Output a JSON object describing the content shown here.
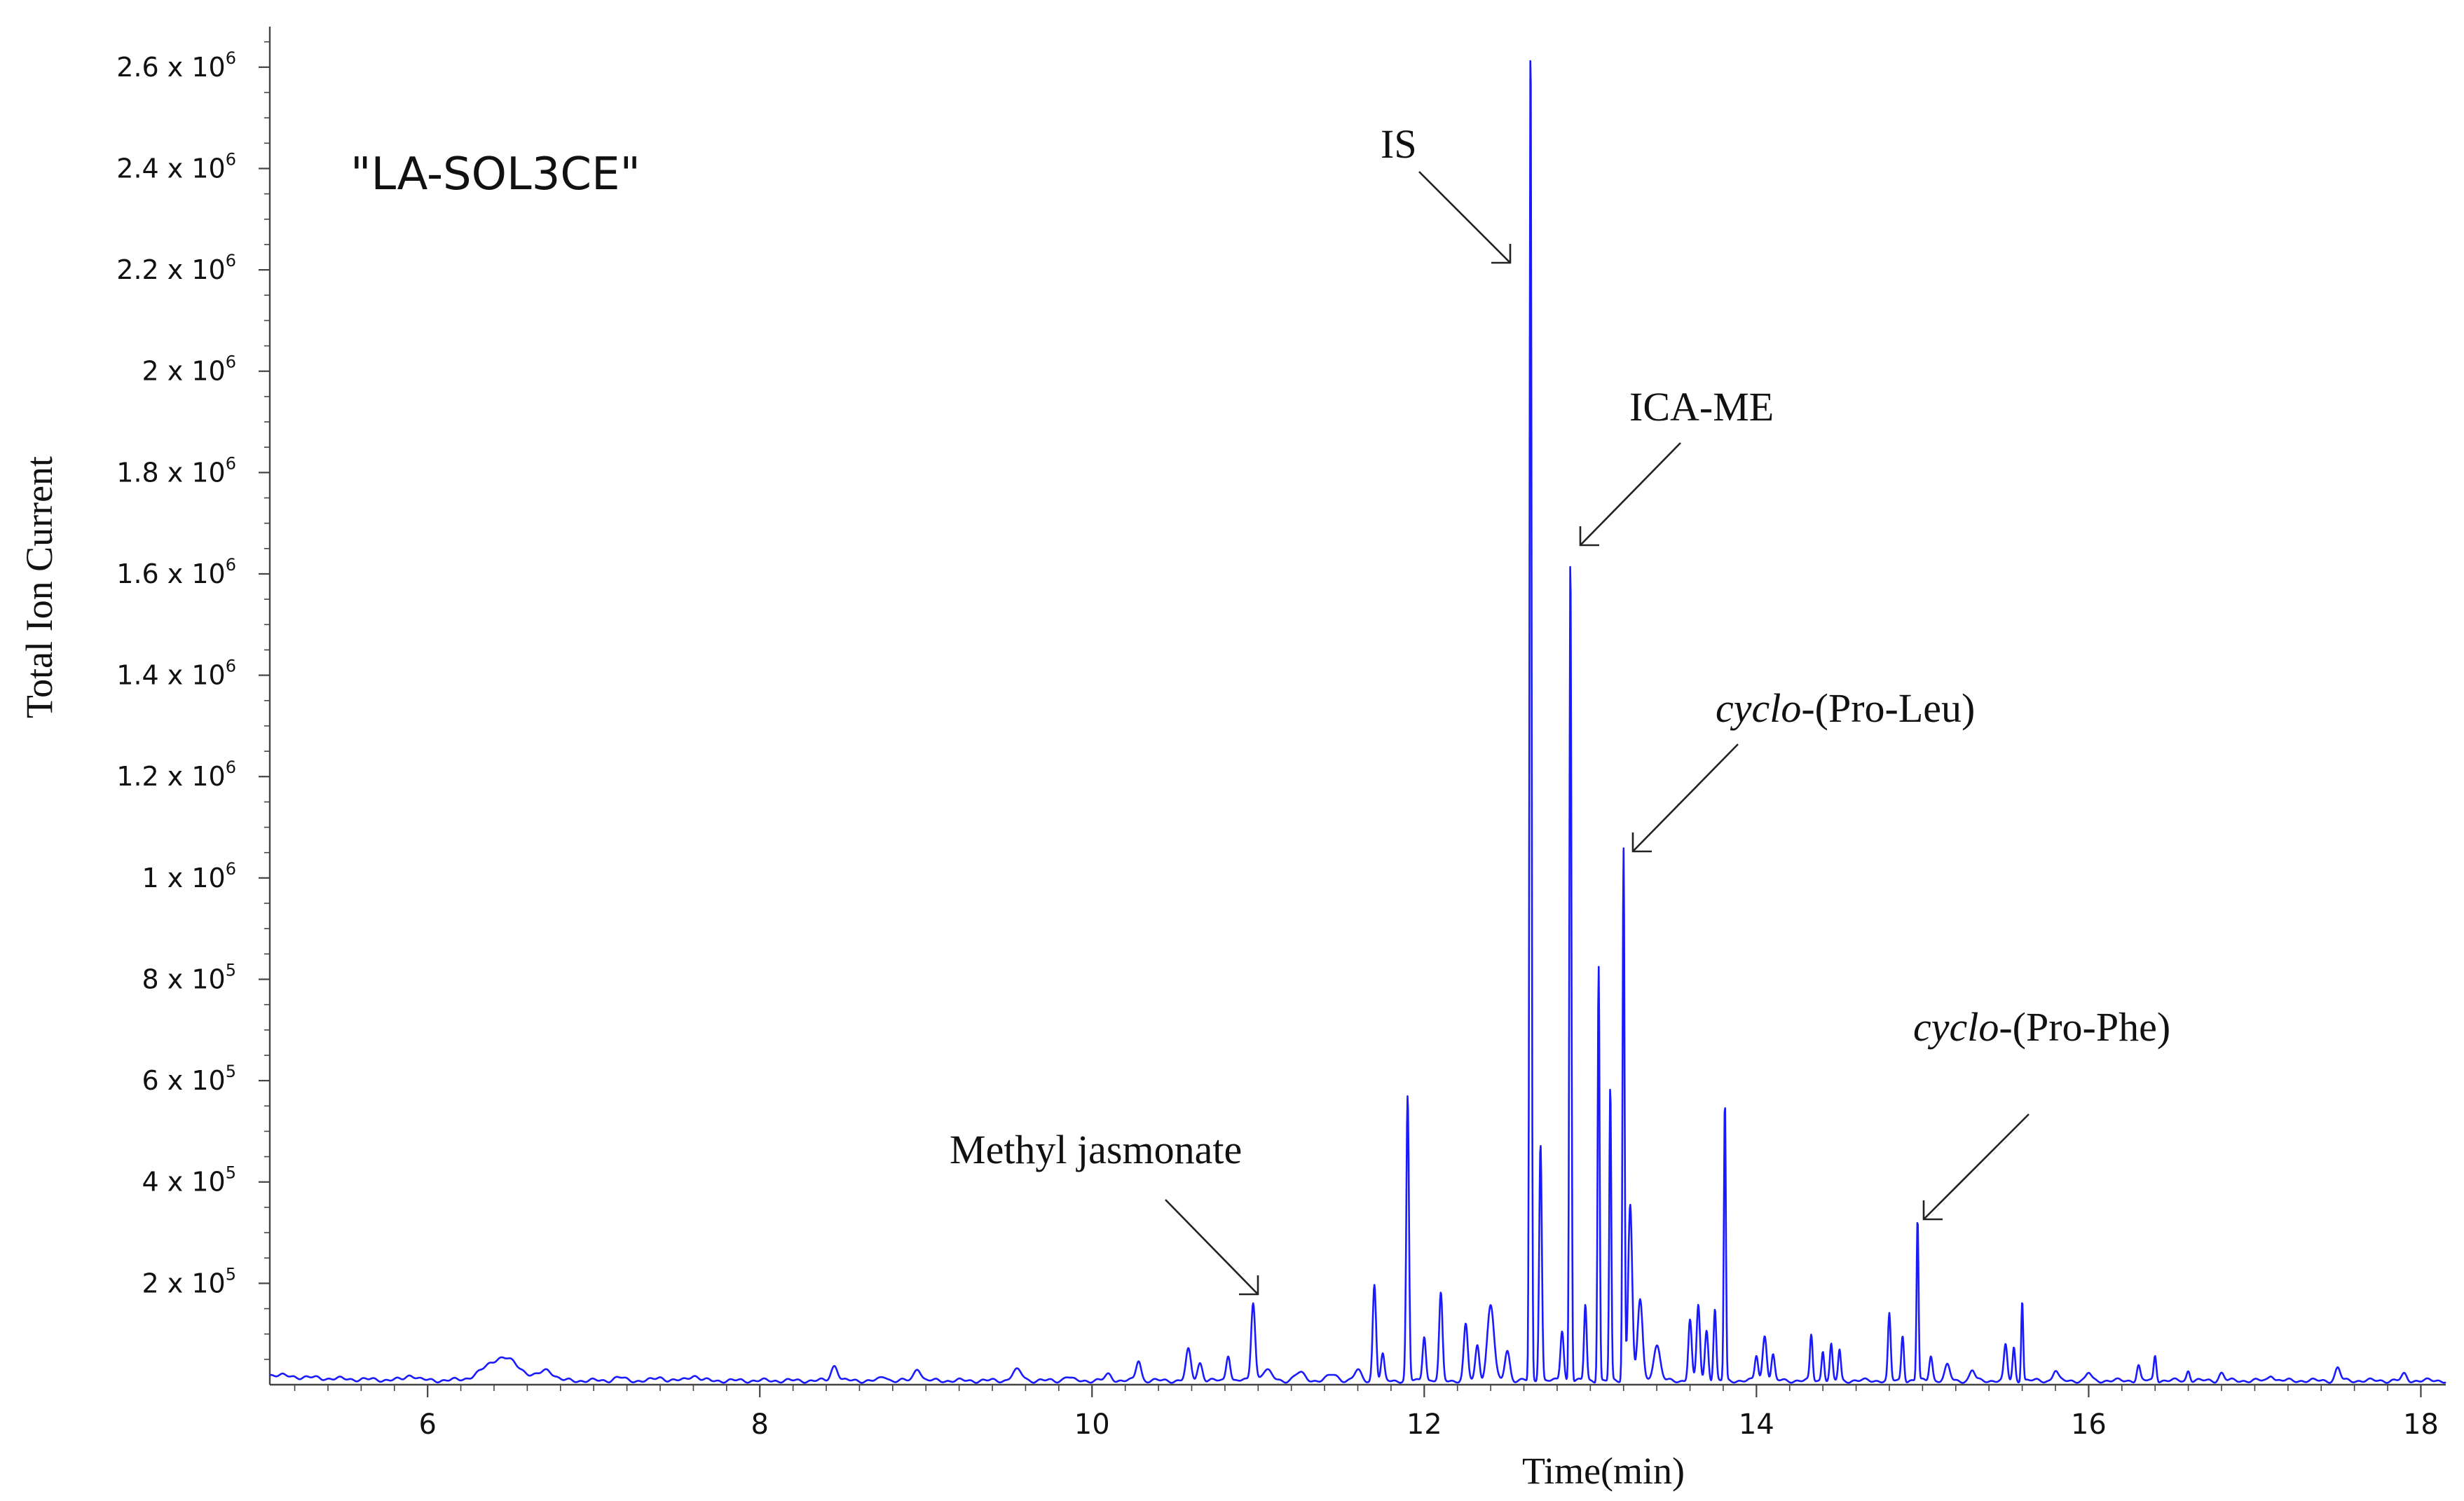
{
  "chart_data": {
    "type": "line",
    "sample_label": "\"LA-SOL3CE\"",
    "xlabel": "Time(min)",
    "ylabel": "Total Ion Current",
    "xlim": [
      5.05,
      18.15
    ],
    "ylim": [
      0,
      2.68
    ],
    "x_ticks": [
      6,
      8,
      10,
      12,
      14,
      16,
      18
    ],
    "x_tick_labels": [
      "6",
      "8",
      "10",
      "12",
      "14",
      "16",
      "18"
    ],
    "y_ticks": [
      {
        "value": 0.2,
        "mantissa": "2 x 10",
        "exp": "5"
      },
      {
        "value": 0.4,
        "mantissa": "4 x 10",
        "exp": "5"
      },
      {
        "value": 0.6,
        "mantissa": "6 x 10",
        "exp": "5"
      },
      {
        "value": 0.8,
        "mantissa": "8 x 10",
        "exp": "5"
      },
      {
        "value": 1.0,
        "mantissa": "1 x 10",
        "exp": "6"
      },
      {
        "value": 1.2,
        "mantissa": "1.2  x 10",
        "exp": "6"
      },
      {
        "value": 1.4,
        "mantissa": "1.4 x 10",
        "exp": "6"
      },
      {
        "value": 1.6,
        "mantissa": "1.6 x 10",
        "exp": "6"
      },
      {
        "value": 1.8,
        "mantissa": "1.8 x 10",
        "exp": "6"
      },
      {
        "value": 2.0,
        "mantissa": "2 x 10",
        "exp": "6"
      },
      {
        "value": 2.2,
        "mantissa": "2.2 x 10",
        "exp": "6"
      },
      {
        "value": 2.4,
        "mantissa": "2.4 x 10",
        "exp": "6"
      },
      {
        "value": 2.6,
        "mantissa": "2.6 x 10",
        "exp": "6"
      }
    ],
    "y_unit_note": "y values in millions (x10^6)",
    "series": [
      {
        "color": "#1a1aff",
        "baseline": 0.008,
        "peaks": [
          [
            5.9,
            0.01,
            0.03
          ],
          [
            6.45,
            0.045,
            0.1
          ],
          [
            6.72,
            0.02,
            0.04
          ],
          [
            7.15,
            0.006,
            0.03
          ],
          [
            7.4,
            0.006,
            0.03
          ],
          [
            7.6,
            0.01,
            0.03
          ],
          [
            8.45,
            0.03,
            0.02
          ],
          [
            8.75,
            0.008,
            0.02
          ],
          [
            8.95,
            0.025,
            0.02
          ],
          [
            9.55,
            0.02,
            0.03
          ],
          [
            9.85,
            0.008,
            0.02
          ],
          [
            10.1,
            0.012,
            0.02
          ],
          [
            10.28,
            0.04,
            0.015
          ],
          [
            10.58,
            0.06,
            0.015
          ],
          [
            10.65,
            0.035,
            0.015
          ],
          [
            10.82,
            0.052,
            0.012
          ],
          [
            10.97,
            0.155,
            0.012
          ],
          [
            11.05,
            0.02,
            0.03
          ],
          [
            11.25,
            0.015,
            0.03
          ],
          [
            11.45,
            0.012,
            0.03
          ],
          [
            11.6,
            0.02,
            0.02
          ],
          [
            11.7,
            0.19,
            0.01
          ],
          [
            11.75,
            0.05,
            0.01
          ],
          [
            11.9,
            0.56,
            0.008
          ],
          [
            12.0,
            0.09,
            0.01
          ],
          [
            12.1,
            0.17,
            0.01
          ],
          [
            12.25,
            0.11,
            0.012
          ],
          [
            12.32,
            0.07,
            0.012
          ],
          [
            12.4,
            0.15,
            0.02
          ],
          [
            12.5,
            0.06,
            0.015
          ],
          [
            12.64,
            2.67,
            0.006
          ],
          [
            12.7,
            0.47,
            0.008
          ],
          [
            12.83,
            0.1,
            0.01
          ],
          [
            12.88,
            1.64,
            0.006
          ],
          [
            12.97,
            0.15,
            0.008
          ],
          [
            13.05,
            0.82,
            0.006
          ],
          [
            13.12,
            0.58,
            0.006
          ],
          [
            13.2,
            1.05,
            0.006
          ],
          [
            13.24,
            0.35,
            0.012
          ],
          [
            13.3,
            0.16,
            0.015
          ],
          [
            13.4,
            0.07,
            0.02
          ],
          [
            13.6,
            0.12,
            0.01
          ],
          [
            13.65,
            0.15,
            0.01
          ],
          [
            13.7,
            0.1,
            0.01
          ],
          [
            13.75,
            0.14,
            0.008
          ],
          [
            13.81,
            0.55,
            0.006
          ],
          [
            14.0,
            0.05,
            0.01
          ],
          [
            14.05,
            0.09,
            0.012
          ],
          [
            14.1,
            0.05,
            0.01
          ],
          [
            14.33,
            0.09,
            0.008
          ],
          [
            14.4,
            0.06,
            0.008
          ],
          [
            14.45,
            0.07,
            0.008
          ],
          [
            14.5,
            0.06,
            0.008
          ],
          [
            14.8,
            0.13,
            0.008
          ],
          [
            14.88,
            0.09,
            0.008
          ],
          [
            14.97,
            0.32,
            0.006
          ],
          [
            15.05,
            0.05,
            0.01
          ],
          [
            15.15,
            0.03,
            0.015
          ],
          [
            15.3,
            0.02,
            0.015
          ],
          [
            15.5,
            0.07,
            0.01
          ],
          [
            15.55,
            0.065,
            0.008
          ],
          [
            15.6,
            0.16,
            0.006
          ],
          [
            15.8,
            0.02,
            0.015
          ],
          [
            16.0,
            0.015,
            0.015
          ],
          [
            16.3,
            0.03,
            0.01
          ],
          [
            16.4,
            0.05,
            0.008
          ],
          [
            16.6,
            0.02,
            0.01
          ],
          [
            16.8,
            0.015,
            0.015
          ],
          [
            17.1,
            0.012,
            0.015
          ],
          [
            17.5,
            0.025,
            0.015
          ],
          [
            17.9,
            0.012,
            0.015
          ]
        ]
      }
    ],
    "annotations": [
      {
        "text": "IS",
        "italic_prefix": "",
        "peak_x": 12.64
      },
      {
        "text": "ICA-ME",
        "italic_prefix": "",
        "peak_x": 12.88
      },
      {
        "text": "-(Pro-Leu)",
        "italic_prefix": "cyclo",
        "peak_x": 13.2
      },
      {
        "text": "-(Pro-Phe)",
        "italic_prefix": "cyclo",
        "peak_x": 14.97
      },
      {
        "text": "Methyl jasmonate",
        "italic_prefix": "",
        "peak_x": 10.97
      }
    ]
  }
}
